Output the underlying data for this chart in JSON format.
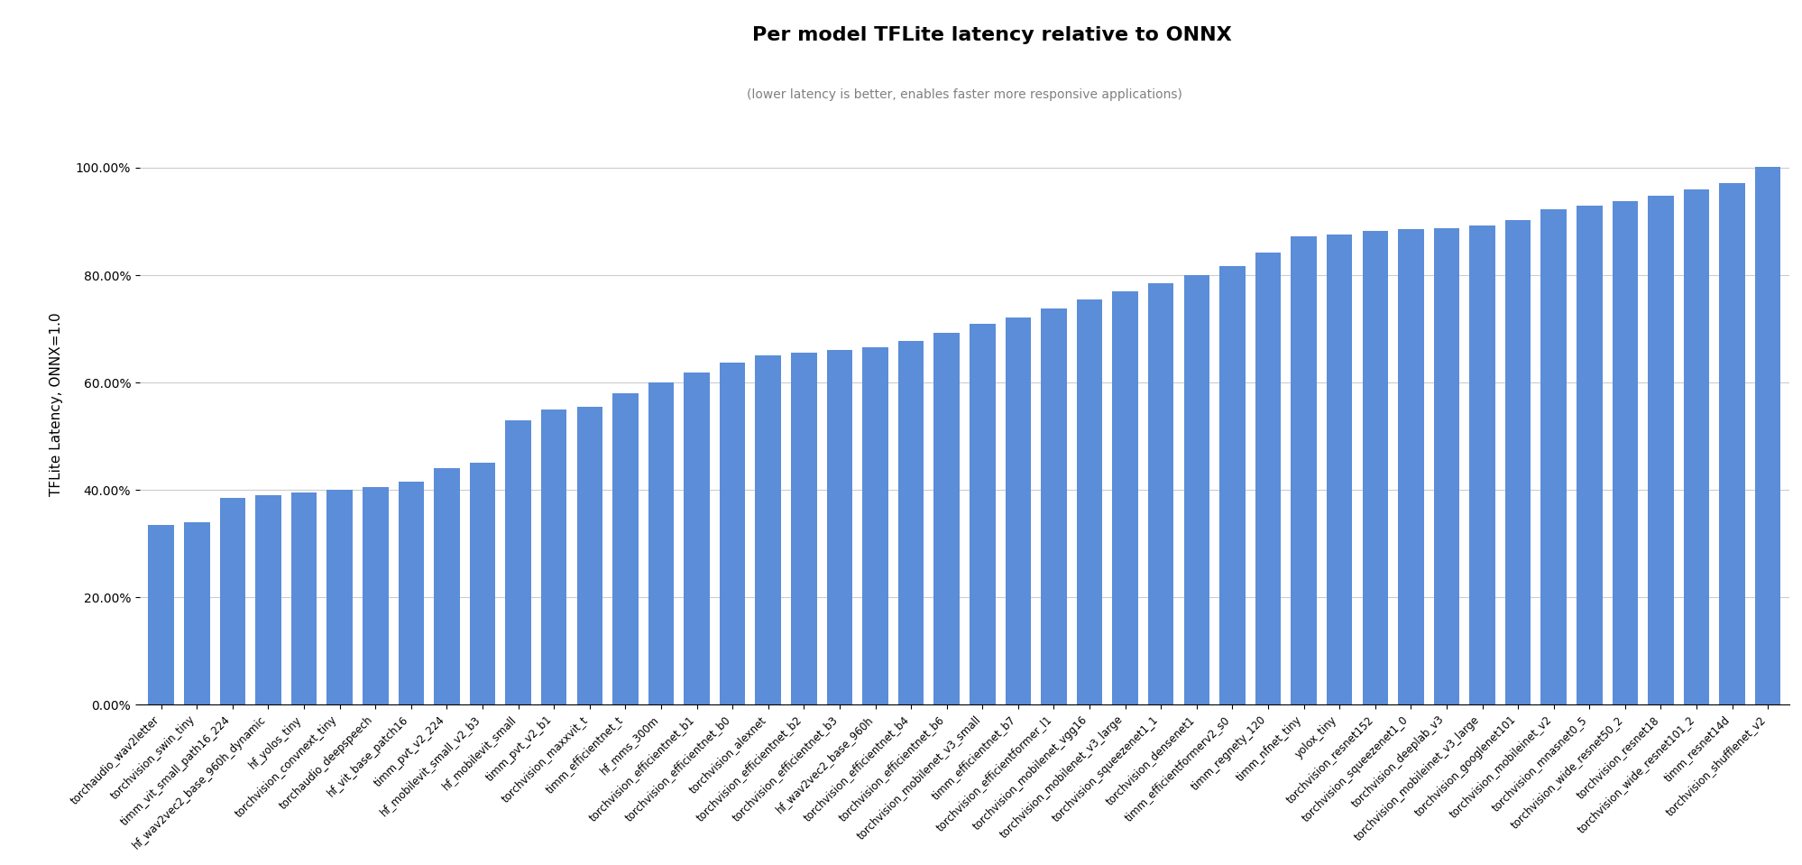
{
  "title": "Per model TFLite latency relative to ONNX",
  "subtitle": "(lower latency is better, enables faster more responsive applications)",
  "ylabel": "TFLite Latency, ONNX=1.0",
  "bar_color": "#5b8dd9",
  "background_color": "#ffffff",
  "grid_color": "#cccccc",
  "categories": [
    "torchaudio_wav2letter",
    "torchvision_swin_tiny",
    "timm_vit_small_path16_224",
    "hf_wav2vec2_base_960h_dynamic",
    "hf_yolos_tiny",
    "torchvision_convnext_tiny",
    "torchaudio_deepspeech",
    "hf_vit_base_patch16",
    "timm_pvt_v2_224",
    "hf_mobilevit_small_v2_b3",
    "hf_mobilevit_small",
    "timm_pvt_v2_b1",
    "torchvision_maxxvit_t",
    "timm_efficientnet_t",
    "hf_mms_300m",
    "torchvision_efficientnet_b1",
    "torchvision_efficientnet_b0",
    "torchvision_alexnet",
    "torchvision_efficientnet_b2",
    "torchvision_efficientnet_b3",
    "hf_wav2vec2_base_960h",
    "torchvision_efficientnet_b4",
    "torchvision_efficientnet_b6",
    "torchvision_mobilenet_v3_small",
    "timm_efficientnet_b7",
    "torchvision_efficientformer_l1",
    "torchvision_mobilenet_vgg16",
    "torchvision_mobilenet_v3_large",
    "torchvision_squeezenet1_1",
    "torchvision_densenet1",
    "timm_efficientformerv2_s0",
    "timm_regnety_120",
    "timm_nfnet_tiny",
    "yolox_tiny",
    "torchvision_resnet152",
    "torchvision_squeezenet1_0",
    "torchvision_deeplab_v3",
    "torchvision_mobileinet_v3_large",
    "torchvision_googlenet101",
    "torchvision_mobileinet_v2",
    "torchvision_mnasnet0_5",
    "torchvision_wide_resnet50_2",
    "torchvision_resnet18",
    "torchvision_wide_resnet101_2",
    "timm_resnet14d",
    "torchvision_shufflenet_v2"
  ],
  "values": [
    0.335,
    0.34,
    0.385,
    0.39,
    0.395,
    0.4,
    0.405,
    0.415,
    0.44,
    0.45,
    0.53,
    0.55,
    0.555,
    0.58,
    0.6,
    0.618,
    0.638,
    0.65,
    0.655,
    0.66,
    0.665,
    0.678,
    0.693,
    0.71,
    0.722,
    0.738,
    0.755,
    0.77,
    0.785,
    0.8,
    0.817,
    0.842,
    0.872,
    0.875,
    0.882,
    0.885,
    0.888,
    0.892,
    0.902,
    0.922,
    0.93,
    0.938,
    0.948,
    0.96,
    0.972,
    1.002
  ],
  "ylim_max": 1.12,
  "ytick_positions": [
    0.0,
    0.2,
    0.4,
    0.6,
    0.8,
    1.0
  ],
  "ytick_labels": [
    "0.00%",
    "20.00%",
    "40.00%",
    "60.00%",
    "80.00%",
    "100.00%"
  ]
}
